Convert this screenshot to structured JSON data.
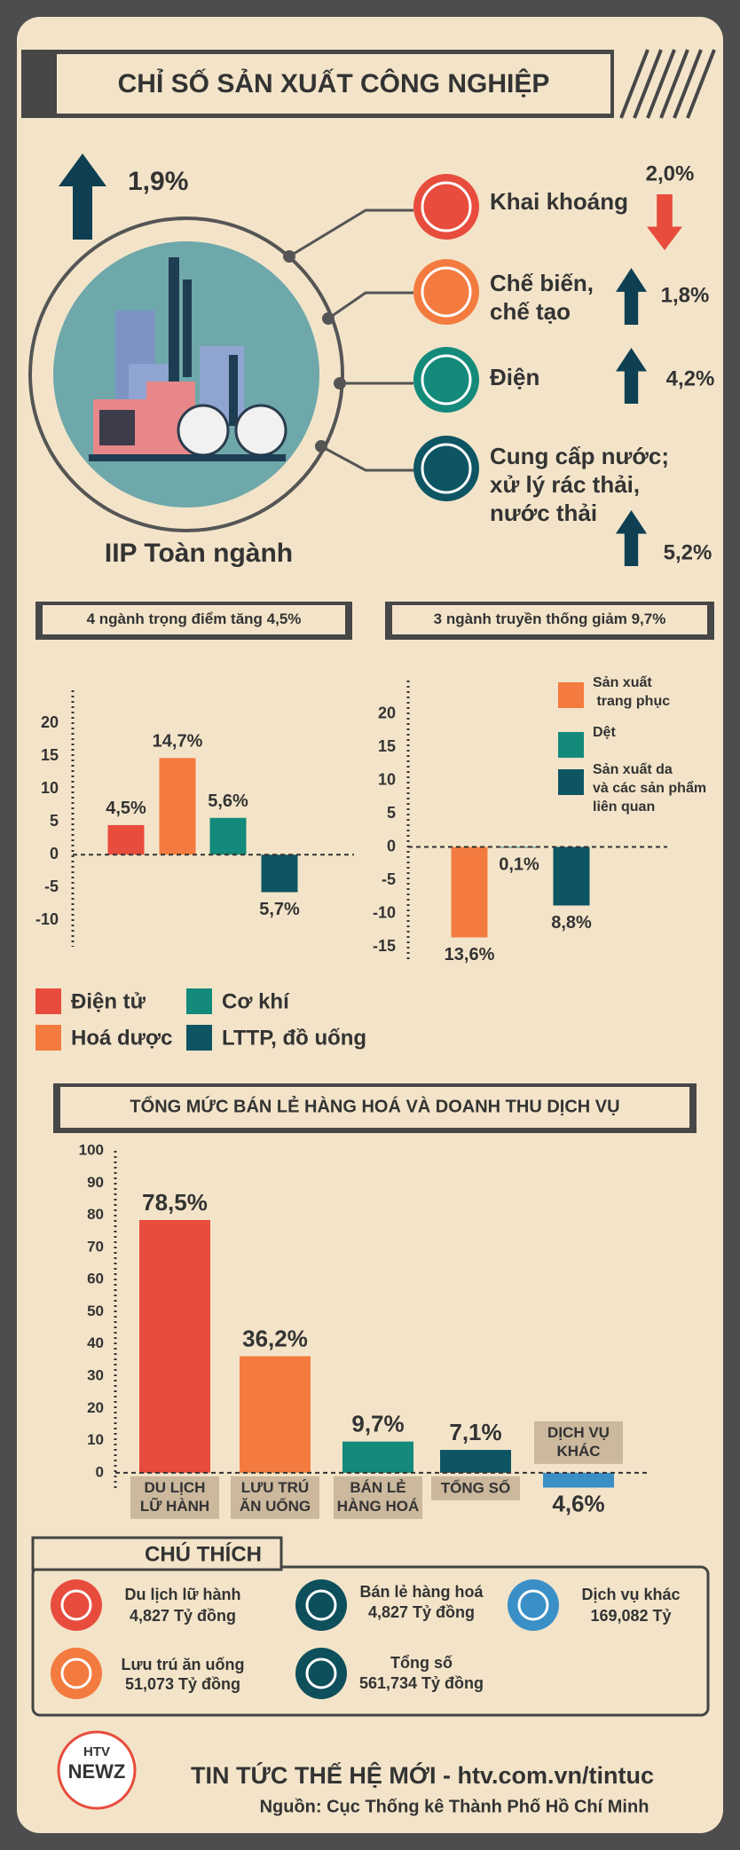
{
  "header": {
    "title": "CHỈ SỐ SẢN XUẤT CÔNG NGHIỆP"
  },
  "iip": {
    "change": "1,9%",
    "label": "IIP Toàn ngành",
    "sectors": [
      {
        "name": "Khai khoáng",
        "change": "2,0%"
      },
      {
        "name": "Chế biến,\nchế tạo",
        "change": "1,8%"
      },
      {
        "name": "Điện",
        "change": "4,2%"
      },
      {
        "name": "Cung cấp nước;\nxử lý rác thải,\nnước thải",
        "change": "5,2%"
      }
    ]
  },
  "chart_data": [
    {
      "type": "bar",
      "title": "4 ngành trọng điểm tăng 4,5%",
      "categories": [
        "Điện tử",
        "Hoá dược",
        "Cơ khí",
        "LTTP, đồ uống"
      ],
      "values": [
        4.5,
        14.7,
        5.6,
        -5.7
      ],
      "value_labels": [
        "4,5%",
        "14,7%",
        "5,6%",
        "5,7%"
      ],
      "colors": [
        "#e84c3d",
        "#f47b3f",
        "#138a7a",
        "#0e5563"
      ],
      "ylim": [
        -14,
        25
      ],
      "yticks": [
        -10,
        -5,
        0,
        5,
        10,
        15,
        20
      ]
    },
    {
      "type": "bar",
      "title": "3 ngành truyền thống giảm 9,7%",
      "categories": [
        "Sản xuất\n trang phục",
        "Dệt",
        "Sản xuất da\nvà các sản phẩm\nliên quan"
      ],
      "values": [
        -13.6,
        -0.1,
        -8.8
      ],
      "value_labels": [
        "13,6%",
        "0,1%",
        "8,8%"
      ],
      "colors": [
        "#f47b3f",
        "#138a7a",
        "#0e5563"
      ],
      "ylim": [
        -17,
        25
      ],
      "yticks": [
        -15,
        -10,
        -5,
        0,
        5,
        10,
        15,
        20
      ]
    },
    {
      "type": "bar",
      "title": "TỔNG MỨC BÁN LẺ HÀNG HOÁ VÀ DOANH THU DỊCH VỤ",
      "categories": [
        "DU LỊCH\nLỮ HÀNH",
        "LƯU TRÚ\nĂN UỐNG",
        "BÁN LẺ\nHÀNG HOÁ",
        "TỔNG SỐ",
        "DỊCH VỤ\nKHÁC"
      ],
      "values": [
        78.5,
        36.2,
        9.7,
        7.1,
        -4.6
      ],
      "value_labels": [
        "78,5%",
        "36,2%",
        "9,7%",
        "7,1%",
        "4,6%"
      ],
      "colors": [
        "#e84c3d",
        "#f47b3f",
        "#138a7a",
        "#0e5563",
        "#3a8fc7"
      ],
      "ylim": [
        -5,
        100
      ],
      "yticks": [
        0,
        10,
        20,
        30,
        40,
        50,
        60,
        70,
        80,
        90,
        100
      ]
    }
  ],
  "notes": {
    "title": "CHÚ THÍCH",
    "items": [
      {
        "name": "Du lịch lữ hành",
        "amount": "4,827 Tỷ đồng"
      },
      {
        "name": "Bán lẻ hàng hoá",
        "amount": "4,827 Tỷ đồng"
      },
      {
        "name": "Dịch vụ khác",
        "amount": "169,082 Tỷ"
      },
      {
        "name": "Lưu trú ăn uống",
        "amount": "51,073 Tỷ đồng"
      },
      {
        "name": "Tổng số",
        "amount": "561,734 Tỷ đồng"
      }
    ]
  },
  "footer": {
    "logo_top": "HTV",
    "logo_main": "NEWZ",
    "slogan": "TIN TỨC THẾ HỆ MỚI - htv.com.vn/tintuc",
    "source": "Nguồn: Cục Thống kê Thành Phố Hồ Chí Minh"
  }
}
